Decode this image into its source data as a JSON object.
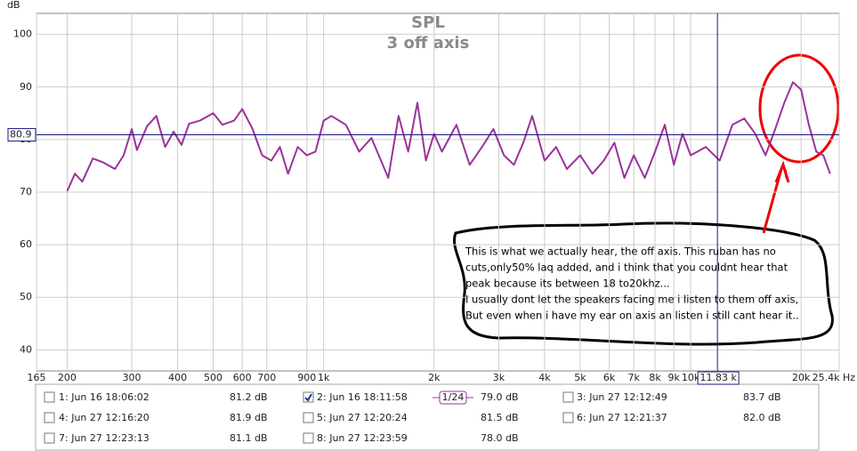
{
  "chart_data": {
    "type": "line",
    "title": "SPL",
    "subtitle": "3 off axis",
    "y_unit_label": "dB",
    "x": [
      200,
      210,
      220,
      235,
      250,
      270,
      285,
      300,
      310,
      330,
      350,
      370,
      390,
      410,
      430,
      460,
      500,
      530,
      570,
      600,
      640,
      680,
      720,
      760,
      800,
      850,
      900,
      950,
      1000,
      1050,
      1150,
      1250,
      1350,
      1500,
      1600,
      1700,
      1800,
      1900,
      2000,
      2100,
      2300,
      2500,
      2700,
      2900,
      3100,
      3300,
      3500,
      3700,
      4000,
      4300,
      4600,
      5000,
      5400,
      5800,
      6200,
      6600,
      7000,
      7500,
      8000,
      8500,
      9000,
      9500,
      10000,
      11000,
      12000,
      13000,
      14000,
      15000,
      16000,
      17000,
      18000,
      19000,
      20000,
      21000,
      22000,
      23000,
      24000
    ],
    "series": [
      {
        "name": "2: Jun 16 18:11:58",
        "color": "#993399",
        "values": [
          70.2,
          73.5,
          72,
          76.4,
          75.7,
          74.4,
          77,
          82,
          78,
          82.5,
          84.5,
          78.6,
          81.5,
          79,
          83,
          83.6,
          85,
          82.8,
          83.6,
          85.8,
          82,
          77,
          76,
          78.6,
          73.5,
          78.6,
          77,
          77.7,
          83.6,
          84.5,
          82.8,
          77.7,
          80.3,
          72.7,
          84.5,
          77.7,
          87,
          76,
          81.1,
          77.7,
          82.8,
          75.2,
          78.6,
          82,
          77,
          75.2,
          79.4,
          84.5,
          76,
          78.6,
          74.4,
          77,
          73.5,
          76,
          79.4,
          72.7,
          77,
          72.7,
          77.7,
          82.8,
          75.2,
          81.1,
          77,
          78.6,
          76,
          82.8,
          84,
          81.1,
          77,
          82,
          87,
          90.9,
          89.5,
          82.8,
          77.7,
          77,
          73.5
        ]
      }
    ],
    "xscale": "log",
    "xlim": [
      165,
      25400
    ],
    "xticks": [
      165,
      200,
      300,
      400,
      500,
      600,
      700,
      900,
      {
        "value": 1000,
        "label": "1k"
      },
      {
        "value": 2000,
        "label": "2k"
      },
      {
        "value": 3000,
        "label": "3k"
      },
      {
        "value": 4000,
        "label": "4k"
      },
      {
        "value": 5000,
        "label": "5k"
      },
      {
        "value": 6000,
        "label": "6k"
      },
      {
        "value": 7000,
        "label": "7k"
      },
      {
        "value": 8000,
        "label": "8k"
      },
      {
        "value": 9000,
        "label": "9k"
      },
      {
        "value": 10000,
        "label": "10k"
      },
      {
        "value": 20000,
        "label": "20k"
      },
      {
        "value": 25400,
        "label": "25.4k Hz"
      }
    ],
    "ylim": [
      36,
      104
    ],
    "yticks": [
      40,
      50,
      60,
      70,
      80,
      90,
      100
    ],
    "grid": true,
    "cursor": {
      "x": 11830,
      "x_label": "11.83 k",
      "y": 80.9,
      "y_label": "80.9"
    },
    "annotation": [
      "This is what we actually hear, the off axis. This ruban has no",
      "cuts,only50% laq added, and i think that you couldnt hear that",
      "peak because its between 18 to20khz...",
      " I usually dont let the speakers facing me i listen to them off axis,",
      "But even when i have my ear on axis an listen i still cant hear it.."
    ]
  },
  "smoothing": "1/24",
  "legend_panel": [
    {
      "label": "1: Jun 16 18:06:02",
      "value": "81.2 dB",
      "color": "#8040a8",
      "checked": false
    },
    {
      "label": "2: Jun 16 18:11:58",
      "value": "79.0 dB",
      "color": "#993399",
      "checked": true
    },
    {
      "label": "3: Jun 27 12:12:49",
      "value": "83.7 dB",
      "color": "#208040",
      "checked": false
    },
    {
      "label": "4: Jun 27 12:16:20",
      "value": "81.9 dB",
      "color": "#4040a0",
      "checked": false
    },
    {
      "label": "5: Jun 27 12:20:24",
      "value": "81.5 dB",
      "color": "#9040a0",
      "checked": false
    },
    {
      "label": "6: Jun 27 12:21:37",
      "value": "82.0 dB",
      "color": "#108080",
      "checked": false
    },
    {
      "label": "7: Jun 27 12:23:13",
      "value": "81.1 dB",
      "color": "#b08000",
      "checked": false
    },
    {
      "label": "8: Jun 27 12:23:59",
      "value": "78.0 dB",
      "color": "#20a040",
      "checked": false
    }
  ]
}
